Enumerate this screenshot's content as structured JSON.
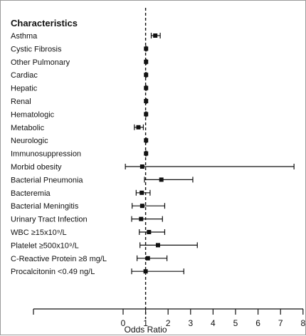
{
  "chart_data": {
    "type": "forest",
    "header": "Characteristics",
    "xlabel": "Odds Ratio",
    "xlim": [
      0,
      8
    ],
    "xticks": [
      "0",
      "1",
      "2",
      "3",
      "4",
      "5",
      "6",
      "7",
      "8"
    ],
    "reference_line": 1,
    "rows": [
      {
        "label": "Asthma",
        "or": 1.43,
        "lo": 1.25,
        "hi": 1.65
      },
      {
        "label": "Cystic Fibrosis",
        "or": 1.02,
        "lo": 1.0,
        "hi": 1.04
      },
      {
        "label": "Other Pulmonary",
        "or": 1.02,
        "lo": 1.0,
        "hi": 1.04
      },
      {
        "label": "Cardiac",
        "or": 1.02,
        "lo": 1.0,
        "hi": 1.04
      },
      {
        "label": "Hepatic",
        "or": 1.02,
        "lo": 1.0,
        "hi": 1.04
      },
      {
        "label": "Renal",
        "or": 1.02,
        "lo": 1.0,
        "hi": 1.04
      },
      {
        "label": "Hematologic",
        "or": 1.02,
        "lo": 1.0,
        "hi": 1.04
      },
      {
        "label": "Metabolic",
        "or": 0.68,
        "lo": 0.5,
        "hi": 0.9
      },
      {
        "label": "Neurologic",
        "or": 1.02,
        "lo": 1.0,
        "hi": 1.04
      },
      {
        "label": "Immunosuppression",
        "or": 1.02,
        "lo": 1.0,
        "hi": 1.04
      },
      {
        "label": "Morbid obesity",
        "or": 0.85,
        "lo": 0.1,
        "hi": 7.6
      },
      {
        "label": "Bacterial Pneumonia",
        "or": 1.7,
        "lo": 0.95,
        "hi": 3.1
      },
      {
        "label": "Bacteremia",
        "or": 0.83,
        "lo": 0.58,
        "hi": 1.2
      },
      {
        "label": "Bacterial Meningitis",
        "or": 0.85,
        "lo": 0.4,
        "hi": 1.85
      },
      {
        "label": "Urinary Tract Infection",
        "or": 0.8,
        "lo": 0.38,
        "hi": 1.75
      },
      {
        "label": "WBC ≥15x10⁹/L",
        "or": 1.15,
        "lo": 0.72,
        "hi": 1.85
      },
      {
        "label": "Platelet ≥500x10⁹/L",
        "or": 1.55,
        "lo": 0.75,
        "hi": 3.3
      },
      {
        "label": "C-Reactive Protein ≥8 mg/L",
        "or": 1.1,
        "lo": 0.62,
        "hi": 1.95
      },
      {
        "label": "Procalcitonin <0.49 ng/L",
        "or": 1.0,
        "lo": 0.38,
        "hi": 2.7
      }
    ]
  }
}
